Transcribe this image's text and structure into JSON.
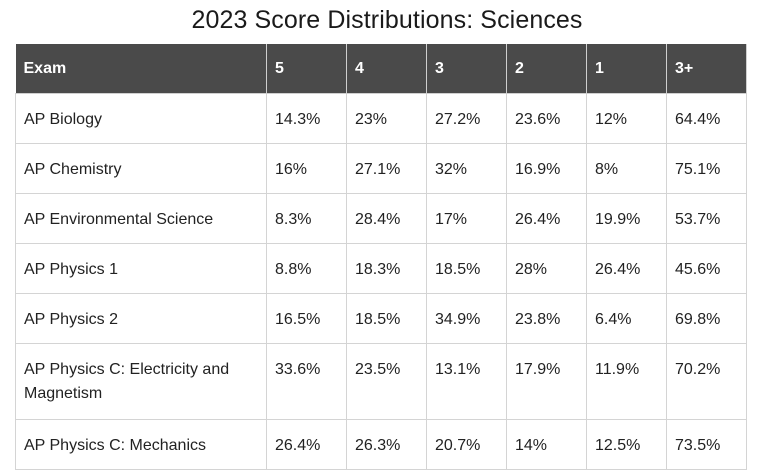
{
  "title": "2023 Score Distributions: Sciences",
  "table": {
    "headers": [
      "Exam",
      "5",
      "4",
      "3",
      "2",
      "1",
      "3+"
    ],
    "rows": [
      [
        "AP Biology",
        "14.3%",
        "23%",
        "27.2%",
        "23.6%",
        "12%",
        "64.4%"
      ],
      [
        "AP Chemistry",
        "16%",
        "27.1%",
        "32%",
        "16.9%",
        "8%",
        "75.1%"
      ],
      [
        "AP Environmental Science",
        "8.3%",
        "28.4%",
        "17%",
        "26.4%",
        "19.9%",
        "53.7%"
      ],
      [
        "AP Physics 1",
        "8.8%",
        "18.3%",
        "18.5%",
        "28%",
        "26.4%",
        "45.6%"
      ],
      [
        "AP Physics 2",
        "16.5%",
        "18.5%",
        "34.9%",
        "23.8%",
        "6.4%",
        "69.8%"
      ],
      [
        "AP Physics C: Electricity and Magnetism",
        "33.6%",
        "23.5%",
        "13.1%",
        "17.9%",
        "11.9%",
        "70.2%"
      ],
      [
        "AP Physics C: Mechanics",
        "26.4%",
        "26.3%",
        "20.7%",
        "14%",
        "12.5%",
        "73.5%"
      ]
    ]
  },
  "colors": {
    "header_background": "#4a4a4a",
    "header_text": "#ffffff",
    "border": "#d4d4d4"
  }
}
